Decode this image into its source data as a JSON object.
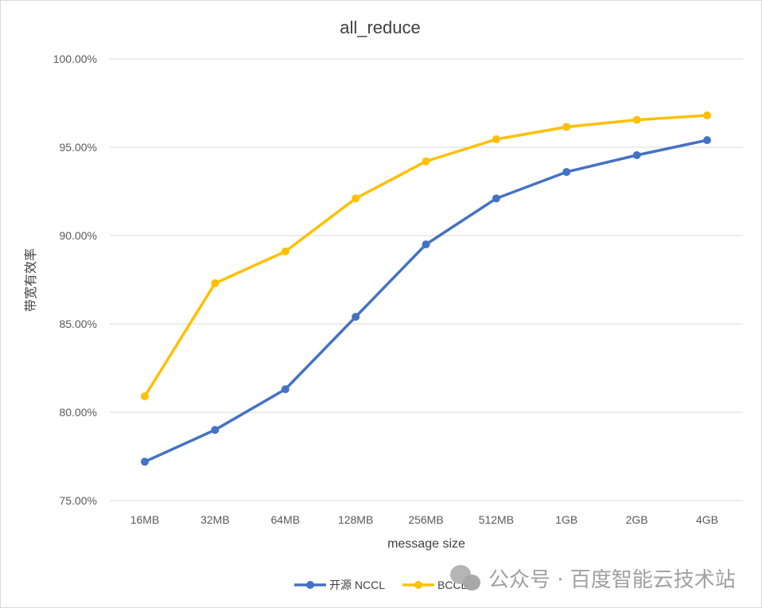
{
  "chart_data": {
    "type": "line",
    "title": "all_reduce",
    "xlabel": "message size",
    "ylabel": "带宽有效率",
    "categories": [
      "16MB",
      "32MB",
      "64MB",
      "128MB",
      "256MB",
      "512MB",
      "1GB",
      "2GB",
      "4GB"
    ],
    "ylim": [
      75,
      100
    ],
    "yticks": [
      "75.00%",
      "80.00%",
      "85.00%",
      "90.00%",
      "95.00%",
      "100.00%"
    ],
    "ytick_values": [
      75,
      80,
      85,
      90,
      95,
      100
    ],
    "grid": true,
    "legend_position": "bottom",
    "series": [
      {
        "name": "开源 NCCL",
        "color": "#4472C4",
        "values": [
          77.2,
          79.0,
          81.3,
          85.4,
          89.5,
          92.1,
          93.6,
          94.55,
          95.4
        ]
      },
      {
        "name": "BCCL",
        "color": "#FFC000",
        "values": [
          80.9,
          87.3,
          89.1,
          92.1,
          94.2,
          95.45,
          96.15,
          96.55,
          96.8
        ]
      }
    ]
  },
  "watermark": "公众号 · 百度智能云技术站"
}
